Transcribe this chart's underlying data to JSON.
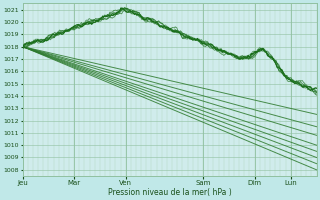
{
  "title": "Pression niveau de la mer( hPa )",
  "bg_color": "#c0e8e8",
  "plot_bg_color": "#d0ecec",
  "grid_major_color": "#90c0a0",
  "grid_minor_color": "#b0d8c0",
  "line_color": "#1a6e1a",
  "straight_line_color": "#2d7a2d",
  "tick_color": "#1a501a",
  "ylim": [
    1007.5,
    1021.5
  ],
  "yticks": [
    1008,
    1009,
    1010,
    1011,
    1012,
    1013,
    1014,
    1015,
    1016,
    1017,
    1018,
    1019,
    1020,
    1021
  ],
  "xtick_labels": [
    "Jeu",
    "Mar",
    "Ven",
    "Sam",
    "Dim",
    "Lun"
  ],
  "xtick_positions": [
    0.0,
    1.0,
    2.0,
    3.5,
    4.5,
    5.2
  ]
}
